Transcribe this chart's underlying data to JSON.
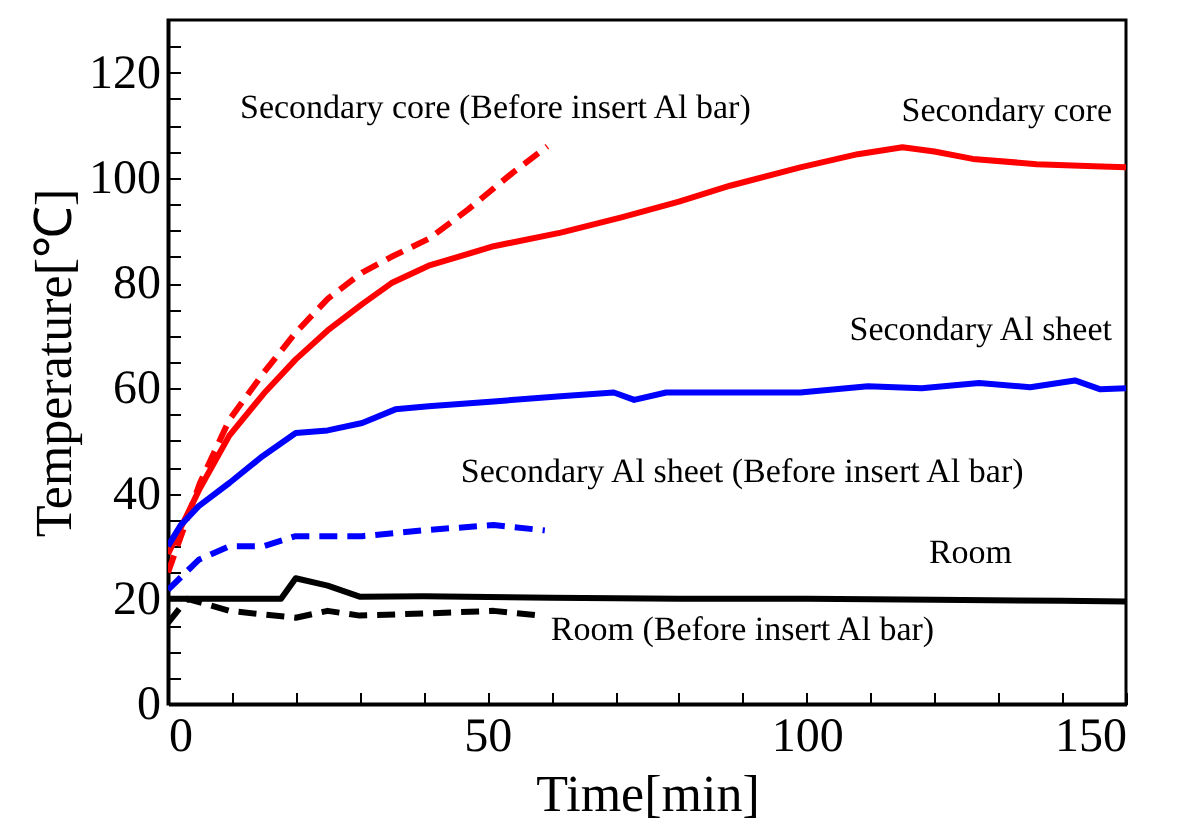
{
  "chart_data": {
    "type": "line",
    "xlabel": "Time[min]",
    "ylabel": "Temperature[℃]",
    "xlim": [
      0,
      150
    ],
    "ylim": [
      0,
      130
    ],
    "xticks": [
      0,
      {
        "value": 10,
        "label": null
      },
      {
        "value": 20,
        "label": null
      },
      {
        "value": 30,
        "label": null
      },
      {
        "value": 40,
        "label": null
      },
      50,
      {
        "value": 60,
        "label": null
      },
      {
        "value": 70,
        "label": null
      },
      {
        "value": 80,
        "label": null
      },
      {
        "value": 90,
        "label": null
      },
      100,
      {
        "value": 110,
        "label": null
      },
      {
        "value": 120,
        "label": null
      },
      {
        "value": 130,
        "label": null
      },
      {
        "value": 140,
        "label": null
      },
      150
    ],
    "yticks": [
      0,
      {
        "value": 5,
        "label": null
      },
      {
        "value": 10,
        "label": null
      },
      {
        "value": 15,
        "label": null
      },
      20,
      {
        "value": 25,
        "label": null
      },
      {
        "value": 30,
        "label": null
      },
      {
        "value": 35,
        "label": null
      },
      40,
      {
        "value": 45,
        "label": null
      },
      {
        "value": 50,
        "label": null
      },
      {
        "value": 55,
        "label": null
      },
      60,
      {
        "value": 65,
        "label": null
      },
      {
        "value": 70,
        "label": null
      },
      {
        "value": 75,
        "label": null
      },
      80,
      {
        "value": 85,
        "label": null
      },
      {
        "value": 90,
        "label": null
      },
      {
        "value": 95,
        "label": null
      },
      100,
      {
        "value": 105,
        "label": null
      },
      {
        "value": 110,
        "label": null
      },
      {
        "value": 115,
        "label": null
      },
      120,
      {
        "value": 125,
        "label": null
      }
    ],
    "marker": "none",
    "series": [
      {
        "name": "Secondary core (Before insert Al bar)",
        "color": "#ff0000",
        "line_style": "dashed",
        "x": [
          0,
          5,
          9.6,
          15,
          20,
          25,
          30.4,
          35,
          40.8,
          47,
          54,
          59.4
        ],
        "values": [
          25,
          42,
          54,
          63,
          70.6,
          77,
          82,
          85,
          88.4,
          94,
          101,
          106
        ]
      },
      {
        "name": "Secondary core",
        "color": "#ff0000",
        "line_style": "solid",
        "x": [
          0,
          5,
          9.6,
          15,
          20,
          25,
          30.4,
          35,
          40.8,
          51,
          61.5,
          71,
          80,
          88,
          99,
          108,
          115,
          120,
          126,
          136,
          145,
          150
        ],
        "values": [
          28.5,
          41,
          51,
          59,
          65.5,
          71,
          76,
          80,
          83.3,
          87,
          89.6,
          92.5,
          95.5,
          98.5,
          102,
          104.5,
          105.8,
          105,
          103.6,
          102.6,
          102.2,
          102
        ]
      },
      {
        "name": "Secondary Al sheet",
        "color": "#0000ff",
        "line_style": "solid",
        "x": [
          0,
          2,
          4.8,
          9.6,
          14.8,
          20,
          25,
          30.4,
          35.6,
          40.8,
          51,
          61.5,
          69.8,
          73,
          78,
          88,
          99,
          109.6,
          118,
          127,
          135,
          142,
          146,
          150
        ],
        "values": [
          30,
          34,
          37.6,
          42,
          47.1,
          51.5,
          52,
          53.4,
          56,
          56.6,
          57.5,
          58.5,
          59.2,
          57.8,
          59.2,
          59.2,
          59.2,
          60.4,
          60,
          61,
          60.2,
          61.5,
          59.8,
          60
        ]
      },
      {
        "name": "Secondary Al sheet (Before insert Al bar)",
        "color": "#0000ff",
        "line_style": "dashed",
        "x": [
          0,
          4.8,
          9.6,
          15,
          20,
          30.4,
          40.8,
          51,
          59
        ],
        "values": [
          21.7,
          27.4,
          30,
          30,
          31.9,
          31.9,
          33.1,
          34,
          33
        ]
      },
      {
        "name": "Room",
        "color": "#000000",
        "line_style": "solid",
        "x": [
          0,
          5,
          10,
          17.7,
          20,
          25,
          30,
          40,
          60,
          80,
          100,
          120,
          140,
          150
        ],
        "values": [
          20,
          20,
          20,
          20,
          23.9,
          22.5,
          20.4,
          20.5,
          20.2,
          20,
          20,
          19.8,
          19.6,
          19.5
        ]
      },
      {
        "name": "Room (Before insert Al bar)",
        "color": "#000000",
        "line_style": "dashed",
        "x": [
          0,
          3,
          9.6,
          15,
          20,
          25,
          30,
          40,
          51,
          59
        ],
        "values": [
          15.4,
          20,
          17.7,
          17,
          16.4,
          17.7,
          16.8,
          17.2,
          17.7,
          16.7
        ]
      }
    ]
  }
}
